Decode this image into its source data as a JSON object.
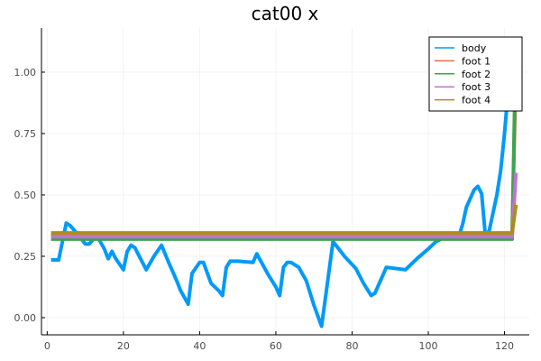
{
  "chart_data": {
    "type": "line",
    "title": "cat00 x",
    "xlabel": "",
    "ylabel": "",
    "xlim": [
      -1.5,
      126.5
    ],
    "ylim": [
      -0.07,
      1.18
    ],
    "xticks": [
      0,
      20,
      40,
      60,
      80,
      100,
      120
    ],
    "yticks": [
      0.0,
      0.25,
      0.5,
      0.75,
      1.0
    ],
    "xtick_labels": [
      "0",
      "20",
      "40",
      "60",
      "80",
      "100",
      "120"
    ],
    "ytick_labels": [
      "0.00",
      "0.25",
      "0.50",
      "0.75",
      "1.00"
    ],
    "grid": true,
    "legend_position": "top-right",
    "series": [
      {
        "name": "body",
        "color": "#009af9",
        "points": [
          [
            1,
            0.235
          ],
          [
            3,
            0.235
          ],
          [
            5,
            0.385
          ],
          [
            6,
            0.375
          ],
          [
            8,
            0.34
          ],
          [
            10,
            0.3
          ],
          [
            11,
            0.3
          ],
          [
            13,
            0.335
          ],
          [
            15,
            0.28
          ],
          [
            16,
            0.24
          ],
          [
            17,
            0.27
          ],
          [
            18,
            0.24
          ],
          [
            20,
            0.195
          ],
          [
            21,
            0.27
          ],
          [
            22,
            0.295
          ],
          [
            23,
            0.285
          ],
          [
            26,
            0.195
          ],
          [
            28,
            0.25
          ],
          [
            30,
            0.295
          ],
          [
            32,
            0.22
          ],
          [
            34,
            0.15
          ],
          [
            35,
            0.11
          ],
          [
            37,
            0.055
          ],
          [
            38,
            0.18
          ],
          [
            40,
            0.225
          ],
          [
            41,
            0.225
          ],
          [
            43,
            0.14
          ],
          [
            45,
            0.11
          ],
          [
            46,
            0.09
          ],
          [
            47,
            0.205
          ],
          [
            48,
            0.23
          ],
          [
            50,
            0.23
          ],
          [
            54,
            0.225
          ],
          [
            55,
            0.26
          ],
          [
            58,
            0.175
          ],
          [
            60,
            0.125
          ],
          [
            61,
            0.09
          ],
          [
            62,
            0.205
          ],
          [
            63,
            0.225
          ],
          [
            64,
            0.225
          ],
          [
            66,
            0.205
          ],
          [
            68,
            0.15
          ],
          [
            70,
            0.05
          ],
          [
            72,
            -0.035
          ],
          [
            75,
            0.31
          ],
          [
            78,
            0.25
          ],
          [
            81,
            0.2
          ],
          [
            83,
            0.14
          ],
          [
            85,
            0.09
          ],
          [
            86,
            0.1
          ],
          [
            89,
            0.205
          ],
          [
            94,
            0.195
          ],
          [
            97,
            0.24
          ],
          [
            100,
            0.28
          ],
          [
            102,
            0.31
          ],
          [
            104,
            0.325
          ],
          [
            106,
            0.33
          ],
          [
            107,
            0.33
          ],
          [
            108,
            0.33
          ],
          [
            109,
            0.38
          ],
          [
            110,
            0.45
          ],
          [
            112,
            0.52
          ],
          [
            113,
            0.535
          ],
          [
            114,
            0.505
          ],
          [
            115,
            0.33
          ],
          [
            116,
            0.355
          ],
          [
            118,
            0.5
          ],
          [
            119,
            0.6
          ],
          [
            120,
            0.75
          ],
          [
            121,
            0.93
          ],
          [
            122,
            0.95
          ],
          [
            123,
            1.0
          ]
        ]
      },
      {
        "name": "foot 1",
        "color": "#e26f46",
        "points": [
          [
            1,
            0.335
          ],
          [
            122,
            0.335
          ],
          [
            123,
            1.0
          ]
        ]
      },
      {
        "name": "foot 2",
        "color": "#3da44d",
        "points": [
          [
            1,
            0.32
          ],
          [
            122,
            0.32
          ],
          [
            123,
            1.14
          ]
        ]
      },
      {
        "name": "foot 3",
        "color": "#c271d2",
        "points": [
          [
            1,
            0.33
          ],
          [
            122,
            0.33
          ],
          [
            123,
            0.59
          ]
        ]
      },
      {
        "name": "foot 4",
        "color": "#ac8d18",
        "points": [
          [
            1,
            0.345
          ],
          [
            122,
            0.345
          ],
          [
            123,
            0.46
          ]
        ]
      }
    ]
  }
}
